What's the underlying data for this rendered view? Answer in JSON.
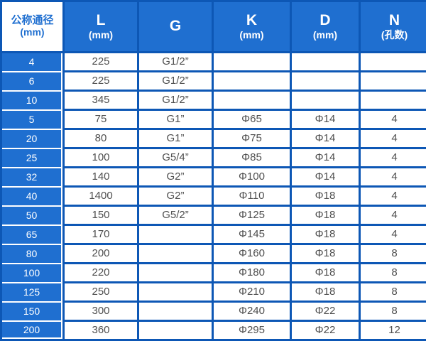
{
  "table": {
    "columns": [
      {
        "label": "公称通径",
        "sub": "(mm)"
      },
      {
        "label": "L",
        "sub": "(mm)"
      },
      {
        "label": "G",
        "sub": ""
      },
      {
        "label": "K",
        "sub": "(mm)"
      },
      {
        "label": "D",
        "sub": "(mm)"
      },
      {
        "label": "N",
        "sub": "(孔数)"
      }
    ],
    "rows": [
      [
        "4",
        "225",
        "G1/2”",
        "",
        "",
        ""
      ],
      [
        "6",
        "225",
        "G1/2”",
        "",
        "",
        ""
      ],
      [
        "10",
        "345",
        "G1/2”",
        "",
        "",
        ""
      ],
      [
        "5",
        "75",
        "G1”",
        "Φ65",
        "Φ14",
        "4"
      ],
      [
        "20",
        "80",
        "G1”",
        "Φ75",
        "Φ14",
        "4"
      ],
      [
        "25",
        "100",
        "G5/4”",
        "Φ85",
        "Φ14",
        "4"
      ],
      [
        "32",
        "140",
        "G2”",
        "Φ100",
        "Φ14",
        "4"
      ],
      [
        "40",
        "1400",
        "G2”",
        "Φ110",
        "Φ18",
        "4"
      ],
      [
        "50",
        "150",
        "G5/2”",
        "Φ125",
        "Φ18",
        "4"
      ],
      [
        "65",
        "170",
        "",
        "Φ145",
        "Φ18",
        "4"
      ],
      [
        "80",
        "200",
        "",
        "Φ160",
        "Φ18",
        "8"
      ],
      [
        "100",
        "220",
        "",
        "Φ180",
        "Φ18",
        "8"
      ],
      [
        "125",
        "250",
        "",
        "Φ210",
        "Φ18",
        "8"
      ],
      [
        "150",
        "300",
        "",
        "Φ240",
        "Φ22",
        "8"
      ],
      [
        "200",
        "360",
        "",
        "Φ295",
        "Φ22",
        "12"
      ]
    ]
  },
  "colors": {
    "cell_blue": "#1f6fd0",
    "border_blue": "#0d57b5",
    "text_gray": "#4f4f4f",
    "white": "#ffffff"
  }
}
